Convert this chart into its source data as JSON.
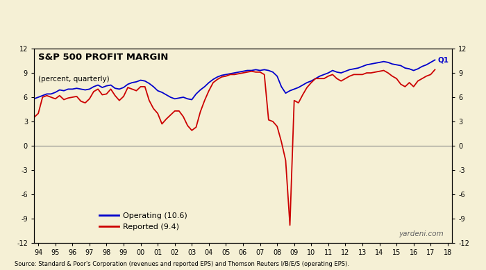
{
  "title": "S&P 500 PROFIT MARGIN",
  "subtitle": "(percent, quarterly)",
  "background_color": "#f5f0d5",
  "source_text": "Source: Standard & Poor's Corporation (revenues and reported EPS) and Thomson Reuters I/B/E/S (operating EPS).",
  "watermark": "yardeni.com",
  "ylim": [
    -12,
    12
  ],
  "yticks": [
    -12,
    -9,
    -6,
    -3,
    0,
    3,
    6,
    9,
    12
  ],
  "xlim_start": 1993.75,
  "xlim_end": 2018.25,
  "xtick_labels": [
    "94",
    "95",
    "96",
    "97",
    "98",
    "99",
    "00",
    "01",
    "02",
    "03",
    "04",
    "05",
    "06",
    "07",
    "08",
    "09",
    "10",
    "11",
    "12",
    "13",
    "14",
    "15",
    "16",
    "17",
    "18"
  ],
  "xtick_positions": [
    1994,
    1995,
    1996,
    1997,
    1998,
    1999,
    2000,
    2001,
    2002,
    2003,
    2004,
    2005,
    2006,
    2007,
    2008,
    2009,
    2010,
    2011,
    2012,
    2013,
    2014,
    2015,
    2016,
    2017,
    2018
  ],
  "operating_label": "Operating (10.6)",
  "reported_label": "Reported (9.4)",
  "operating_color": "#0000cc",
  "reported_color": "#cc0000",
  "q1_label": "Q1",
  "operating_x": [
    1993.75,
    1994.0,
    1994.25,
    1994.5,
    1994.75,
    1995.0,
    1995.25,
    1995.5,
    1995.75,
    1996.0,
    1996.25,
    1996.5,
    1996.75,
    1997.0,
    1997.25,
    1997.5,
    1997.75,
    1998.0,
    1998.25,
    1998.5,
    1998.75,
    1999.0,
    1999.25,
    1999.5,
    1999.75,
    2000.0,
    2000.25,
    2000.5,
    2000.75,
    2001.0,
    2001.25,
    2001.5,
    2001.75,
    2002.0,
    2002.25,
    2002.5,
    2002.75,
    2003.0,
    2003.25,
    2003.5,
    2003.75,
    2004.0,
    2004.25,
    2004.5,
    2004.75,
    2005.0,
    2005.25,
    2005.5,
    2005.75,
    2006.0,
    2006.25,
    2006.5,
    2006.75,
    2007.0,
    2007.25,
    2007.5,
    2007.75,
    2008.0,
    2008.25,
    2008.5,
    2008.75,
    2009.0,
    2009.25,
    2009.5,
    2009.75,
    2010.0,
    2010.25,
    2010.5,
    2010.75,
    2011.0,
    2011.25,
    2011.5,
    2011.75,
    2012.0,
    2012.25,
    2012.5,
    2012.75,
    2013.0,
    2013.25,
    2013.5,
    2013.75,
    2014.0,
    2014.25,
    2014.5,
    2014.75,
    2015.0,
    2015.25,
    2015.5,
    2015.75,
    2016.0,
    2016.25,
    2016.5,
    2016.75,
    2017.0,
    2017.25
  ],
  "operating_y": [
    5.8,
    6.0,
    6.2,
    6.4,
    6.4,
    6.6,
    6.9,
    6.8,
    7.0,
    7.0,
    7.1,
    7.0,
    6.9,
    7.0,
    7.3,
    7.5,
    7.2,
    7.4,
    7.5,
    7.1,
    7.0,
    7.2,
    7.6,
    7.8,
    7.9,
    8.1,
    8.0,
    7.7,
    7.3,
    6.8,
    6.6,
    6.3,
    6.0,
    5.8,
    5.9,
    6.0,
    5.8,
    5.7,
    6.4,
    6.9,
    7.3,
    7.8,
    8.2,
    8.5,
    8.7,
    8.8,
    8.9,
    9.0,
    9.1,
    9.2,
    9.3,
    9.3,
    9.4,
    9.3,
    9.4,
    9.3,
    9.1,
    8.6,
    7.3,
    6.5,
    6.8,
    7.0,
    7.2,
    7.5,
    7.8,
    8.0,
    8.3,
    8.6,
    8.8,
    9.0,
    9.3,
    9.1,
    9.0,
    9.2,
    9.4,
    9.5,
    9.6,
    9.8,
    10.0,
    10.1,
    10.2,
    10.3,
    10.4,
    10.3,
    10.1,
    10.0,
    9.9,
    9.6,
    9.5,
    9.3,
    9.5,
    9.8,
    10.0,
    10.3,
    10.6
  ],
  "reported_x": [
    1993.75,
    1994.0,
    1994.25,
    1994.5,
    1994.75,
    1995.0,
    1995.25,
    1995.5,
    1995.75,
    1996.0,
    1996.25,
    1996.5,
    1996.75,
    1997.0,
    1997.25,
    1997.5,
    1997.75,
    1998.0,
    1998.25,
    1998.5,
    1998.75,
    1999.0,
    1999.25,
    1999.5,
    1999.75,
    2000.0,
    2000.25,
    2000.5,
    2000.75,
    2001.0,
    2001.25,
    2001.5,
    2001.75,
    2002.0,
    2002.25,
    2002.5,
    2002.75,
    2003.0,
    2003.25,
    2003.5,
    2003.75,
    2004.0,
    2004.25,
    2004.5,
    2004.75,
    2005.0,
    2005.25,
    2005.5,
    2005.75,
    2006.0,
    2006.25,
    2006.5,
    2006.75,
    2007.0,
    2007.25,
    2007.5,
    2007.75,
    2008.0,
    2008.25,
    2008.5,
    2008.75,
    2009.0,
    2009.25,
    2009.5,
    2009.75,
    2010.0,
    2010.25,
    2010.5,
    2010.75,
    2011.0,
    2011.25,
    2011.5,
    2011.75,
    2012.0,
    2012.25,
    2012.5,
    2012.75,
    2013.0,
    2013.25,
    2013.5,
    2013.75,
    2014.0,
    2014.25,
    2014.5,
    2014.75,
    2015.0,
    2015.25,
    2015.5,
    2015.75,
    2016.0,
    2016.25,
    2016.5,
    2016.75,
    2017.0,
    2017.25
  ],
  "reported_y": [
    3.5,
    4.0,
    6.0,
    6.2,
    6.0,
    5.8,
    6.2,
    5.7,
    5.9,
    6.0,
    6.1,
    5.5,
    5.3,
    5.8,
    6.7,
    7.0,
    6.3,
    6.4,
    7.0,
    6.2,
    5.6,
    6.1,
    7.2,
    7.0,
    6.8,
    7.3,
    7.3,
    5.6,
    4.6,
    4.0,
    2.7,
    3.3,
    3.8,
    4.3,
    4.3,
    3.6,
    2.5,
    1.9,
    2.3,
    4.2,
    5.6,
    6.8,
    7.8,
    8.2,
    8.5,
    8.6,
    8.8,
    8.8,
    8.9,
    9.0,
    9.1,
    9.2,
    9.1,
    9.1,
    8.8,
    3.2,
    3.0,
    2.4,
    0.5,
    -1.8,
    -9.8,
    5.6,
    5.3,
    6.3,
    7.2,
    7.8,
    8.3,
    8.3,
    8.3,
    8.6,
    8.8,
    8.3,
    8.0,
    8.3,
    8.6,
    8.8,
    8.8,
    8.8,
    9.0,
    9.0,
    9.1,
    9.2,
    9.3,
    9.0,
    8.6,
    8.3,
    7.6,
    7.3,
    7.8,
    7.3,
    8.0,
    8.3,
    8.6,
    8.8,
    9.4
  ]
}
